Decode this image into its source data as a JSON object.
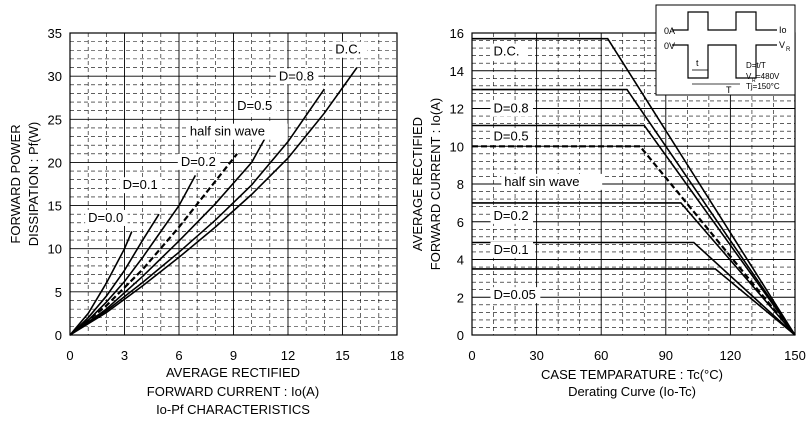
{
  "chart_data": [
    {
      "type": "line",
      "caption": "Io-Pf CHARACTERISTICS",
      "xlabel": [
        "AVERAGE RECTIFIED",
        "FORWARD CURRENT : Io(A)"
      ],
      "ylabel": [
        "FORWARD POWER",
        "DISSIPATION : Pf(W)"
      ],
      "xlim": [
        0,
        18
      ],
      "ylim": [
        0,
        35
      ],
      "xticks": [
        0,
        3,
        6,
        9,
        12,
        15,
        18
      ],
      "yticks": [
        0,
        5,
        10,
        15,
        20,
        25,
        30,
        35
      ],
      "grid": true,
      "series": [
        {
          "name": "D=0.0",
          "x": [
            0,
            1,
            2,
            3,
            3.4
          ],
          "y": [
            0,
            2.5,
            6,
            10,
            12
          ]
        },
        {
          "name": "D=0.1",
          "x": [
            0,
            1,
            2,
            3,
            4,
            4.9
          ],
          "y": [
            0,
            2,
            4.5,
            7.5,
            11,
            14
          ]
        },
        {
          "name": "D=0.2",
          "x": [
            0,
            1,
            2,
            3,
            4,
            5,
            6,
            6.9
          ],
          "y": [
            0,
            1.7,
            3.8,
            6.2,
            9,
            12,
            15,
            18.5
          ]
        },
        {
          "name": "half sin wave",
          "x": [
            0,
            2,
            4,
            6,
            7.5,
            9.2
          ],
          "y": [
            0,
            3.4,
            7.6,
            12.5,
            16.5,
            21
          ],
          "dashed": true
        },
        {
          "name": "D=0.5",
          "x": [
            0,
            2,
            4,
            6,
            8,
            10,
            11
          ],
          "y": [
            0,
            3,
            6.8,
            10.9,
            15.2,
            20,
            23.8
          ]
        },
        {
          "name": "D=0.8",
          "x": [
            0,
            2,
            4,
            6,
            8,
            10,
            12,
            14
          ],
          "y": [
            0,
            2.8,
            6.1,
            9.6,
            13.3,
            17.4,
            22.4,
            28.5
          ]
        },
        {
          "name": "D.C.",
          "x": [
            0,
            2,
            4,
            6,
            8,
            10,
            12,
            14,
            15.8
          ],
          "y": [
            0,
            2.6,
            5.7,
            9,
            12.5,
            16.3,
            20.5,
            25.7,
            31
          ]
        }
      ],
      "curve_labels": [
        {
          "text": "D=0.0",
          "x": 1.0,
          "y": 13.1
        },
        {
          "text": "D=0.1",
          "x": 2.9,
          "y": 16.9
        },
        {
          "text": "D=0.2",
          "x": 6.1,
          "y": 19.6
        },
        {
          "text": "half sin wave",
          "x": 6.6,
          "y": 23.1
        },
        {
          "text": "D=0.5",
          "x": 9.2,
          "y": 26.1
        },
        {
          "text": "D=0.8",
          "x": 11.5,
          "y": 29.5
        },
        {
          "text": "D.C.",
          "x": 14.6,
          "y": 32.6
        }
      ]
    },
    {
      "type": "line",
      "caption": "Derating Curve (Io-Tc)",
      "xlabel": [
        "CASE TEMPARATURE : Tc(°C)"
      ],
      "ylabel": [
        "AVERAGE RECTIFIED",
        "FORWARD CURRENT : Io(A)"
      ],
      "xlim": [
        0,
        150
      ],
      "ylim": [
        0,
        16
      ],
      "xticks": [
        0,
        30,
        60,
        90,
        120,
        150
      ],
      "yticks": [
        0,
        2,
        4,
        6,
        8,
        10,
        12,
        14,
        16
      ],
      "grid": true,
      "series": [
        {
          "name": "D.C.",
          "x": [
            0,
            63,
            150
          ],
          "y": [
            15.7,
            15.7,
            0
          ]
        },
        {
          "name": "D=0.8",
          "x": [
            0,
            72,
            150
          ],
          "y": [
            13,
            13,
            0
          ]
        },
        {
          "name": "D=0.5",
          "x": [
            0,
            80,
            150
          ],
          "y": [
            11.1,
            11.1,
            0
          ]
        },
        {
          "name": "half sin wave",
          "x": [
            0,
            78,
            150
          ],
          "y": [
            10,
            10,
            0
          ],
          "dashed": true
        },
        {
          "name": "D=0.2",
          "x": [
            0,
            97,
            150
          ],
          "y": [
            7,
            7,
            0
          ]
        },
        {
          "name": "D=0.1",
          "x": [
            0,
            103,
            150
          ],
          "y": [
            4.9,
            4.9,
            0
          ]
        },
        {
          "name": "D=0.05",
          "x": [
            0,
            113,
            150
          ],
          "y": [
            3.5,
            3.5,
            0
          ]
        }
      ],
      "curve_labels": [
        {
          "text": "D.C.",
          "x": 10,
          "y": 14.8
        },
        {
          "text": "D=0.8",
          "x": 10,
          "y": 11.8
        },
        {
          "text": "D=0.5",
          "x": 10,
          "y": 10.3
        },
        {
          "text": "half sin wave",
          "x": 15,
          "y": 7.9
        },
        {
          "text": "D=0.2",
          "x": 10,
          "y": 6.1
        },
        {
          "text": "D=0.1",
          "x": 10,
          "y": 4.3
        },
        {
          "text": "D=0.05",
          "x": 10,
          "y": 1.9
        }
      ],
      "inset": {
        "labels": [
          "0A",
          "0V",
          "Io",
          "V",
          "R",
          "t",
          "T",
          "D=t/T",
          "V",
          "R",
          "=480V",
          "Tj=150°C"
        ]
      }
    }
  ]
}
